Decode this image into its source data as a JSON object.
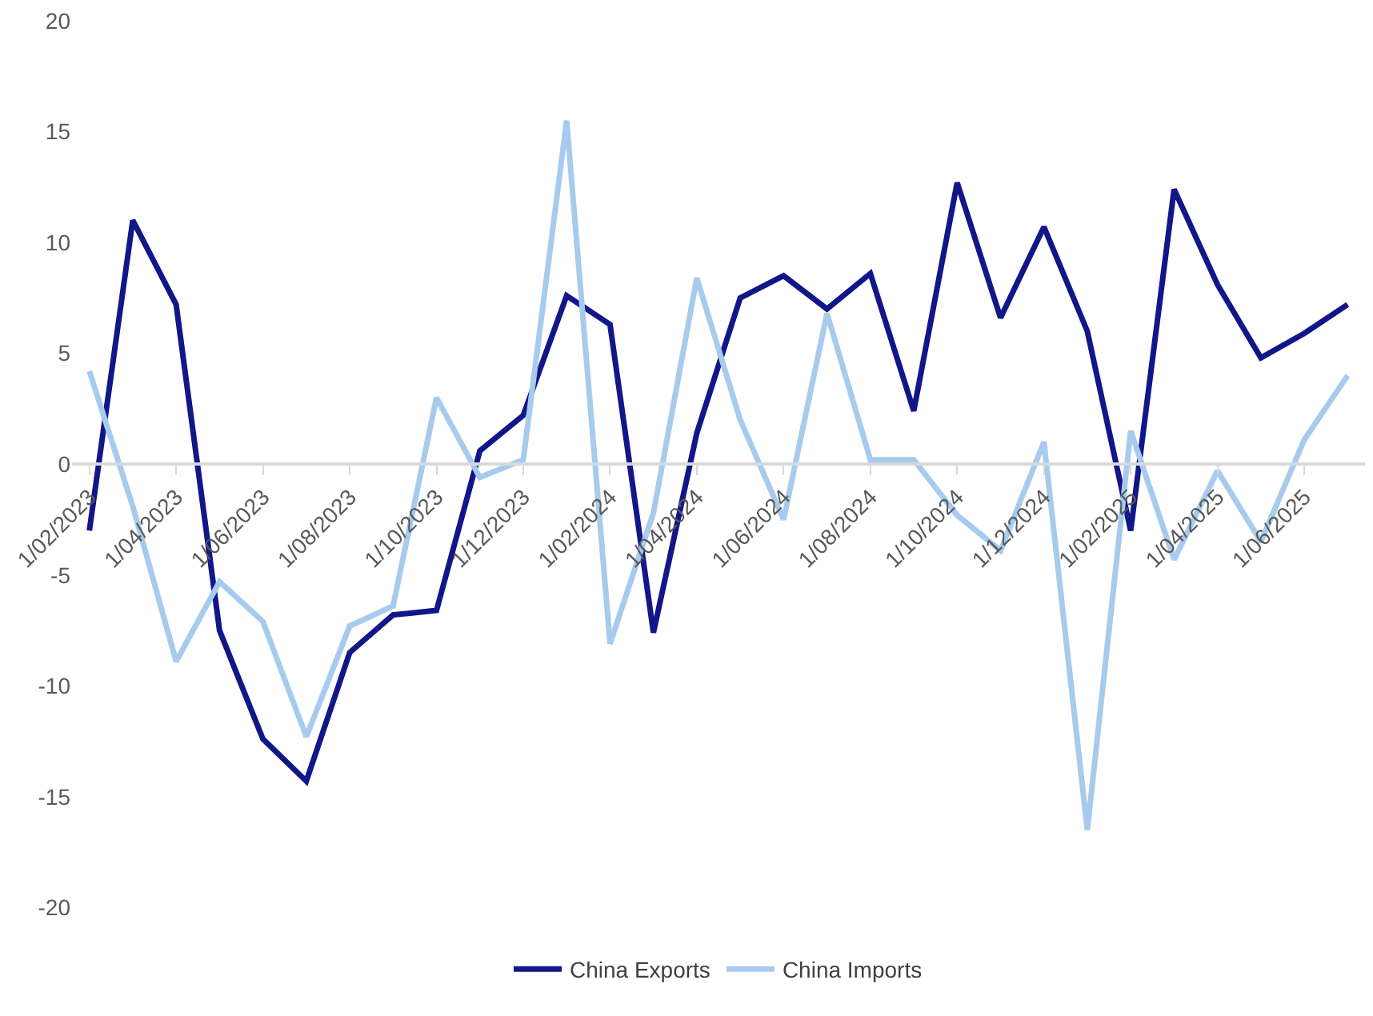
{
  "chart_data": {
    "type": "line",
    "categories": [
      "1/02/2023",
      null,
      "1/04/2023",
      null,
      "1/06/2023",
      null,
      "1/08/2023",
      null,
      "1/10/2023",
      null,
      "1/12/2023",
      null,
      "1/02/2024",
      null,
      "1/04/2024",
      null,
      "1/06/2024",
      null,
      "1/08/2024",
      null,
      "1/10/2024",
      null,
      "1/12/2024",
      null,
      "1/02/2025",
      null,
      "1/04/2025",
      null,
      "1/06/2025",
      null
    ],
    "series": [
      {
        "name": "China Exports",
        "color": "#111689",
        "values": [
          -3.0,
          11.0,
          7.2,
          -7.5,
          -12.4,
          -14.3,
          -8.5,
          -6.8,
          -6.6,
          0.6,
          2.2,
          7.6,
          6.3,
          -7.6,
          1.4,
          7.5,
          8.5,
          7.0,
          8.6,
          2.4,
          12.7,
          6.6,
          10.7,
          6.0,
          -3.0,
          12.4,
          8.1,
          4.8,
          5.9,
          7.2
        ]
      },
      {
        "name": "China Imports",
        "color": "#a6cbee",
        "values": [
          4.2,
          -1.9,
          -8.9,
          -5.3,
          -7.1,
          -12.3,
          -7.3,
          -6.4,
          3.0,
          -0.6,
          0.2,
          15.5,
          -8.1,
          -2.2,
          8.4,
          2.0,
          -2.5,
          6.8,
          0.2,
          0.2,
          -2.3,
          -3.9,
          1.0,
          -16.5,
          1.5,
          -4.3,
          -0.3,
          -3.5,
          1.1,
          4.0
        ]
      }
    ],
    "ylim": [
      -20,
      20
    ],
    "yticks": [
      -20,
      -15,
      -10,
      -5,
      0,
      5,
      10,
      15,
      20
    ],
    "legend": "bottom",
    "marker": "none",
    "line_style": "solid"
  }
}
